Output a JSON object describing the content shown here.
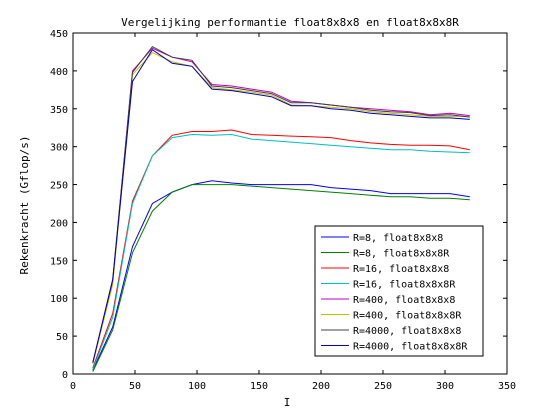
{
  "chart_data": {
    "type": "line",
    "title": "Vergelijking performantie float8x8x8 en float8x8x8R",
    "xlabel": "I",
    "ylabel": "Rekenkracht (Gflop/s)",
    "xlim": [
      0,
      350
    ],
    "ylim": [
      0,
      450
    ],
    "xticks": [
      0,
      50,
      100,
      150,
      200,
      250,
      300,
      350
    ],
    "yticks": [
      0,
      50,
      100,
      150,
      200,
      250,
      300,
      350,
      400,
      450
    ],
    "grid": false,
    "legend_position": "bottom-right",
    "x": [
      16,
      32,
      48,
      64,
      80,
      96,
      112,
      128,
      144,
      160,
      176,
      192,
      208,
      224,
      240,
      256,
      272,
      288,
      304,
      320
    ],
    "series": [
      {
        "name": "R=8, float8x8x8",
        "color": "#0000ff",
        "values": [
          5,
          62,
          168,
          225,
          240,
          250,
          255,
          252,
          250,
          250,
          250,
          250,
          246,
          244,
          242,
          238,
          238,
          238,
          238,
          234
        ]
      },
      {
        "name": "R=8, float8x8x8R",
        "color": "#008000",
        "values": [
          3,
          58,
          160,
          215,
          240,
          250,
          250,
          250,
          248,
          246,
          244,
          242,
          240,
          238,
          236,
          234,
          234,
          232,
          232,
          230
        ]
      },
      {
        "name": "R=16, float8x8x8",
        "color": "#ff0000",
        "values": [
          8,
          80,
          228,
          288,
          315,
          320,
          320,
          322,
          316,
          315,
          314,
          313,
          312,
          308,
          305,
          303,
          302,
          302,
          301,
          296
        ]
      },
      {
        "name": "R=16, float8x8x8R",
        "color": "#00bfbf",
        "values": [
          6,
          75,
          225,
          288,
          312,
          316,
          315,
          316,
          310,
          308,
          306,
          304,
          302,
          300,
          298,
          296,
          296,
          294,
          293,
          292
        ]
      },
      {
        "name": "R=400, float8x8x8",
        "color": "#bf00bf",
        "values": [
          14,
          122,
          400,
          430,
          418,
          412,
          382,
          380,
          376,
          372,
          360,
          358,
          355,
          352,
          350,
          348,
          346,
          342,
          344,
          341
        ]
      },
      {
        "name": "R=400, float8x8x8R",
        "color": "#bfbf00",
        "values": [
          14,
          118,
          395,
          424,
          412,
          406,
          378,
          375,
          372,
          368,
          355,
          354,
          352,
          350,
          346,
          344,
          342,
          340,
          340,
          340
        ]
      },
      {
        "name": "R=4000, float8x8x8",
        "color": "#404040",
        "values": [
          15,
          125,
          398,
          432,
          418,
          414,
          380,
          378,
          374,
          370,
          358,
          358,
          355,
          352,
          348,
          346,
          345,
          341,
          342,
          339
        ]
      },
      {
        "name": "R=4000, float8x8x8R",
        "color": "#0000bf",
        "values": [
          15,
          124,
          386,
          428,
          410,
          406,
          376,
          374,
          370,
          366,
          354,
          354,
          350,
          348,
          344,
          342,
          340,
          338,
          338,
          336
        ]
      }
    ]
  }
}
